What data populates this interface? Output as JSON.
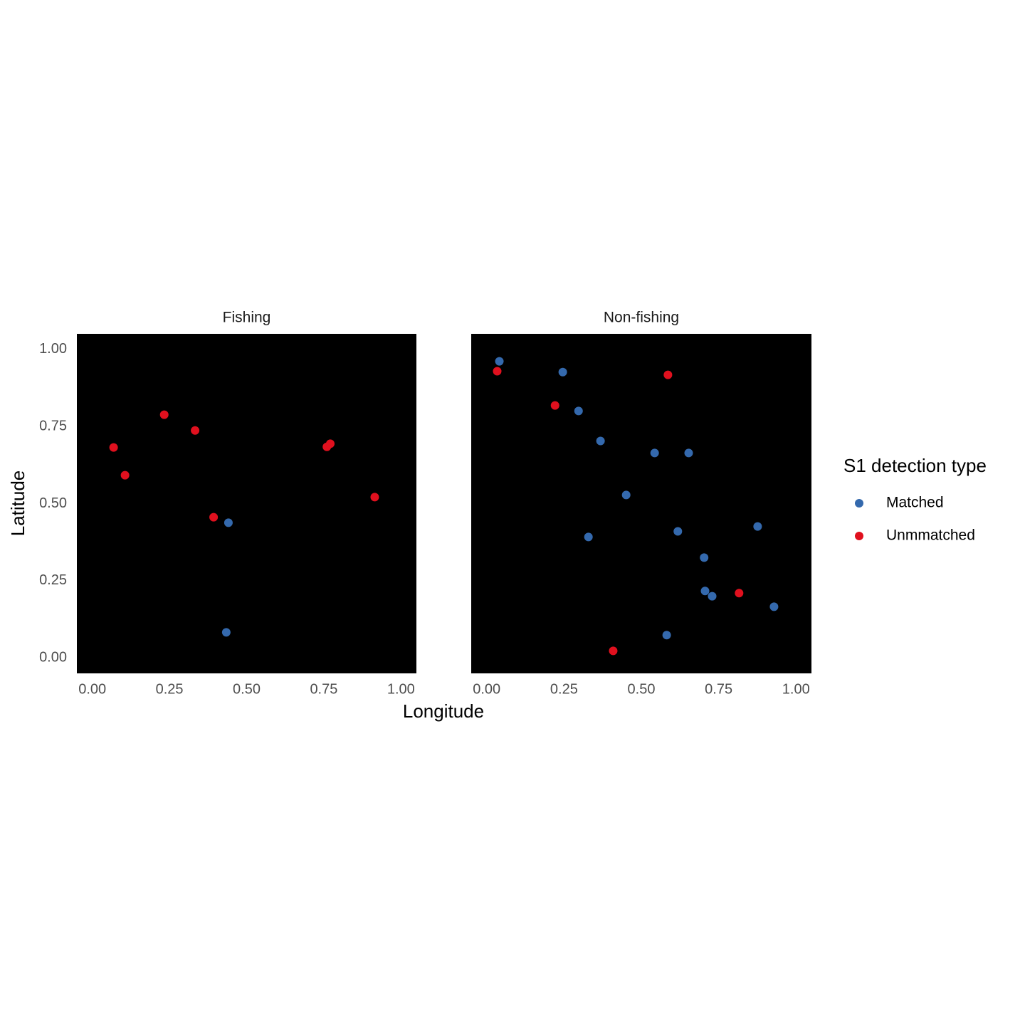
{
  "chart_data": [
    {
      "type": "scatter",
      "title": "Fishing",
      "xlim": [
        -0.05,
        1.05
      ],
      "ylim": [
        -0.05,
        1.05
      ],
      "xticks": [
        {
          "value": 0,
          "label": "0.00"
        },
        {
          "value": 0.25,
          "label": "0.25"
        },
        {
          "value": 0.5,
          "label": "0.50"
        },
        {
          "value": 0.75,
          "label": "0.75"
        },
        {
          "value": 1,
          "label": "1.00"
        }
      ],
      "yticks": [
        {
          "value": 0,
          "label": "0.00"
        },
        {
          "value": 0.25,
          "label": "0.25"
        },
        {
          "value": 0.5,
          "label": "0.50"
        },
        {
          "value": 0.75,
          "label": "0.75"
        },
        {
          "value": 1,
          "label": "1.00"
        }
      ],
      "series": [
        {
          "name": "Matched",
          "color": "#3469ad",
          "x": [
            0.441,
            0.434
          ],
          "values": [
            0.438,
            0.083
          ]
        },
        {
          "name": "Unmmatched",
          "color": "#e0101e",
          "x": [
            0.069,
            0.106,
            0.233,
            0.333,
            0.393,
            0.76,
            0.771,
            0.915
          ],
          "values": [
            0.682,
            0.592,
            0.788,
            0.737,
            0.456,
            0.684,
            0.694,
            0.521
          ]
        }
      ]
    },
    {
      "type": "scatter",
      "title": "Non-fishing",
      "xlim": [
        -0.05,
        1.05
      ],
      "ylim": [
        -0.05,
        1.05
      ],
      "xticks": [
        {
          "value": 0,
          "label": "0.00"
        },
        {
          "value": 0.25,
          "label": "0.25"
        },
        {
          "value": 0.5,
          "label": "0.50"
        },
        {
          "value": 0.75,
          "label": "0.75"
        },
        {
          "value": 1,
          "label": "1.00"
        }
      ],
      "series": [
        {
          "name": "Matched",
          "color": "#3469ad",
          "x": [
            0.041,
            0.246,
            0.297,
            0.368,
            0.543,
            0.653,
            0.451,
            0.329,
            0.618,
            0.703,
            0.706,
            0.729,
            0.876,
            0.929,
            0.582
          ],
          "values": [
            0.961,
            0.926,
            0.8,
            0.703,
            0.664,
            0.664,
            0.528,
            0.392,
            0.41,
            0.325,
            0.217,
            0.2,
            0.426,
            0.166,
            0.074
          ]
        },
        {
          "name": "Unmmatched",
          "color": "#e0101e",
          "x": [
            0.034,
            0.221,
            0.586,
            0.816,
            0.409
          ],
          "values": [
            0.929,
            0.818,
            0.917,
            0.21,
            0.023
          ]
        }
      ]
    }
  ],
  "x_label": "Longitude",
  "y_label": "Latitude",
  "legend": {
    "title": "S1 detection type"
  }
}
